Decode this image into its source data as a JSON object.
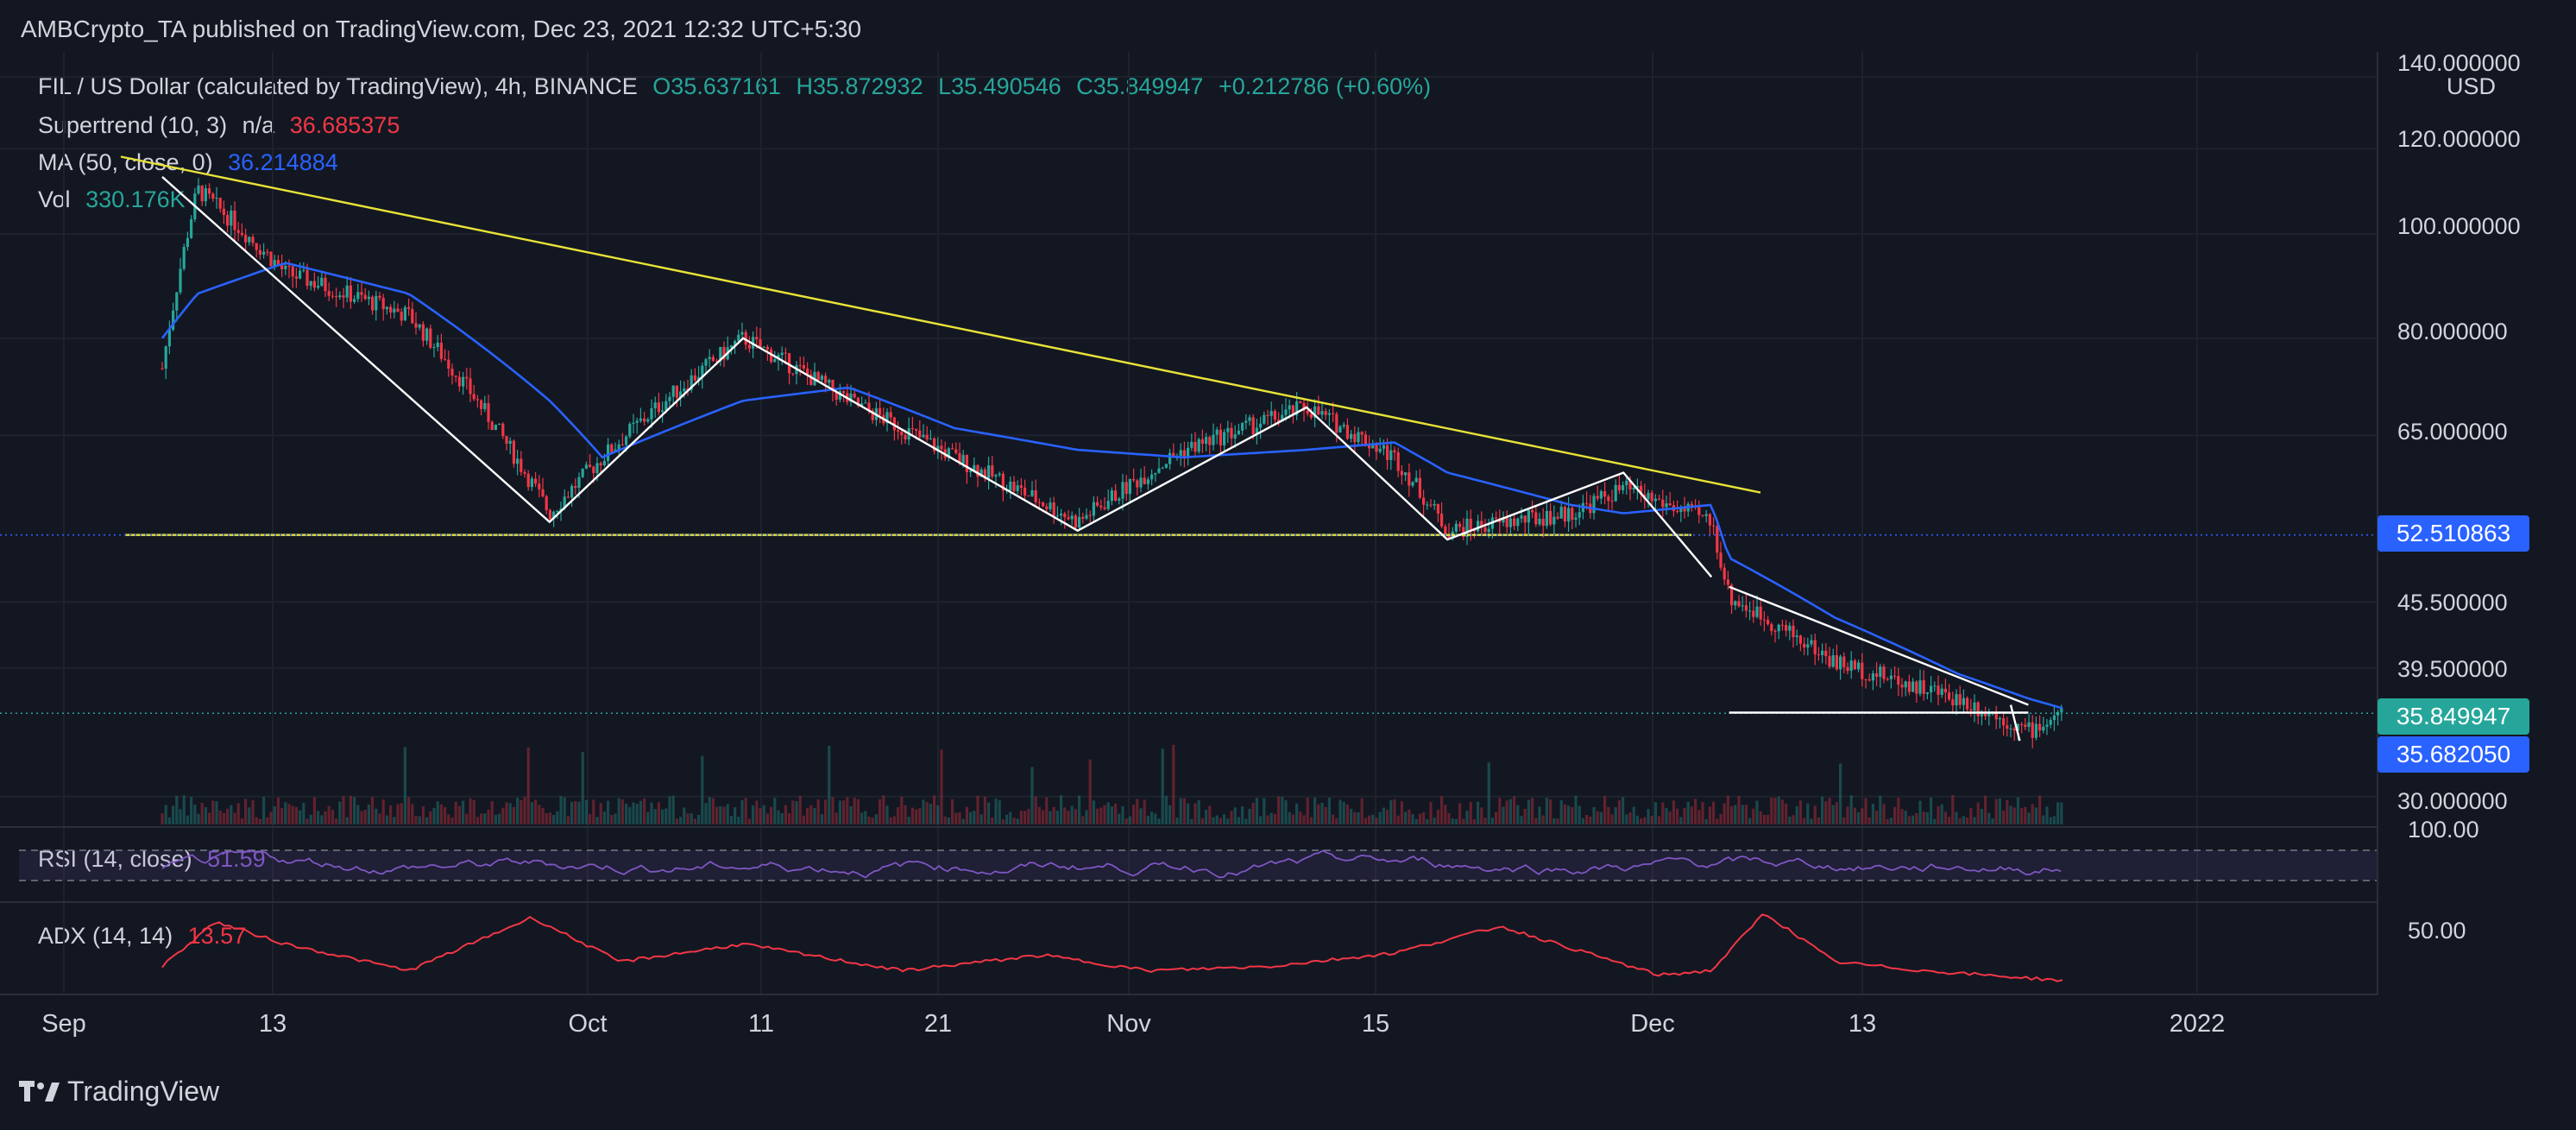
{
  "header": {
    "publisher_line": "AMBCrypto_TA published on TradingView.com, Dec 23, 2021 12:32 UTC+5:30"
  },
  "legend": {
    "symbol": "FIL / US Dollar (calculated by TradingView), 4h, BINANCE",
    "open": "O35.637161",
    "high": "H35.872932",
    "low": "L35.490546",
    "close": "C35.849947",
    "change": "+0.212786 (+0.60%)",
    "supertrend_label": "Supertrend (10, 3)",
    "supertrend_na": "n/a",
    "supertrend_value": "36.685375",
    "ma_label": "MA (50, close, 0)",
    "ma_value": "36.214884",
    "vol_label": "Vol",
    "vol_value": "330.176K",
    "rsi_label": "RSI (14, close)",
    "rsi_value": "51.59",
    "adx_label": "ADX (14, 14)",
    "adx_value": "13.57"
  },
  "price_axis": {
    "currency": "USD",
    "ticks": [
      "140.000000",
      "120.000000",
      "100.000000",
      "80.000000",
      "65.000000",
      "45.500000",
      "39.500000",
      "30.000000"
    ],
    "last_price": "35.849947",
    "ma_price": "35.682050",
    "support_price": "52.510863"
  },
  "rsi_axis": {
    "tick": "100.00"
  },
  "adx_axis": {
    "tick": "50.00"
  },
  "time_axis": {
    "labels": [
      "Sep",
      "13",
      "Oct",
      "11",
      "21",
      "Nov",
      "15",
      "Dec",
      "13",
      "2022"
    ]
  },
  "branding": {
    "logo_text": "TradingView"
  },
  "colors": {
    "background": "#131722",
    "bull": "#26a69a",
    "bear": "#f23645",
    "ma": "#2962ff",
    "trendline": "#e8e337",
    "rsi": "#7e57c2",
    "adx": "#f23645",
    "support_tag": "#2962ff",
    "last_tag": "#26a69a"
  },
  "chart_data": {
    "type": "line",
    "symbol": "FIL/USD",
    "timeframe": "4h",
    "x": [
      "Sep 06",
      "Sep 08",
      "Sep 13",
      "Sep 20",
      "Sep 28",
      "Oct 01",
      "Oct 09",
      "Oct 15",
      "Oct 21",
      "Oct 28",
      "Nov 03",
      "Nov 10",
      "Nov 15",
      "Nov 18",
      "Nov 25",
      "Nov 28",
      "Dec 03",
      "Dec 04",
      "Dec 10",
      "Dec 17",
      "Dec 21",
      "Dec 23"
    ],
    "series": [
      {
        "name": "FIL / US Dollar",
        "values": [
          75,
          110,
          92,
          84,
          55,
          62,
          80,
          70,
          62,
          54,
          63,
          69,
          62,
          53,
          55,
          58,
          54,
          46,
          40,
          37,
          34.5,
          35.85
        ]
      },
      {
        "name": "MA (50, close, 0)",
        "values": [
          80,
          88,
          94,
          88,
          70,
          62,
          70,
          72,
          66,
          63,
          62,
          63,
          64,
          60,
          56,
          55,
          56,
          50,
          44,
          39,
          37,
          36.21
        ]
      }
    ],
    "ylim": [
      28,
      145
    ],
    "yscale": "log",
    "indicators": {
      "rsi": {
        "name": "RSI (14, close)",
        "last": 51.59,
        "range": [
          0,
          100
        ]
      },
      "adx": {
        "name": "ADX (14, 14)",
        "last": 13.57,
        "x": [
          "Sep 06",
          "Sep 09",
          "Sep 13",
          "Sep 20",
          "Sep 27",
          "Oct 02",
          "Oct 09",
          "Oct 18",
          "Oct 26",
          "Nov 01",
          "Nov 08",
          "Nov 15",
          "Nov 21",
          "Nov 30",
          "Dec 03",
          "Dec 06",
          "Dec 10",
          "Dec 15",
          "Dec 23"
        ],
        "values": [
          20,
          40,
          30,
          18,
          42,
          22,
          30,
          18,
          25,
          18,
          20,
          26,
          38,
          16,
          18,
          44,
          22,
          18,
          13.57
        ]
      }
    },
    "annotations": {
      "support_level": 52.510863,
      "last_price": 35.849947,
      "ma_price": 35.68205
    }
  }
}
